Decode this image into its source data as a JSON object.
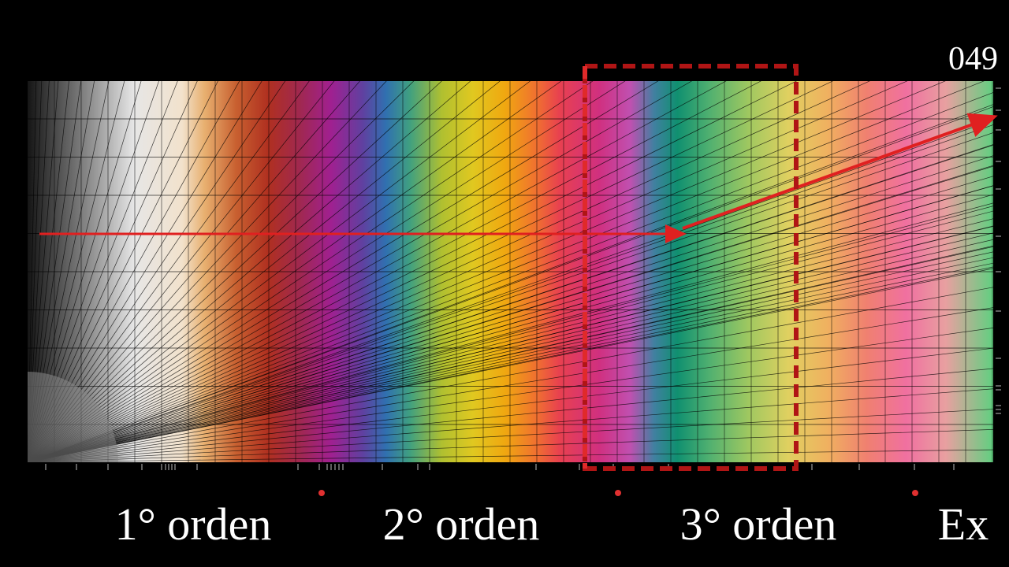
{
  "frame_counter": "049",
  "orders": [
    "1° orden",
    "2° orden",
    "3° orden",
    "Ex"
  ]
}
